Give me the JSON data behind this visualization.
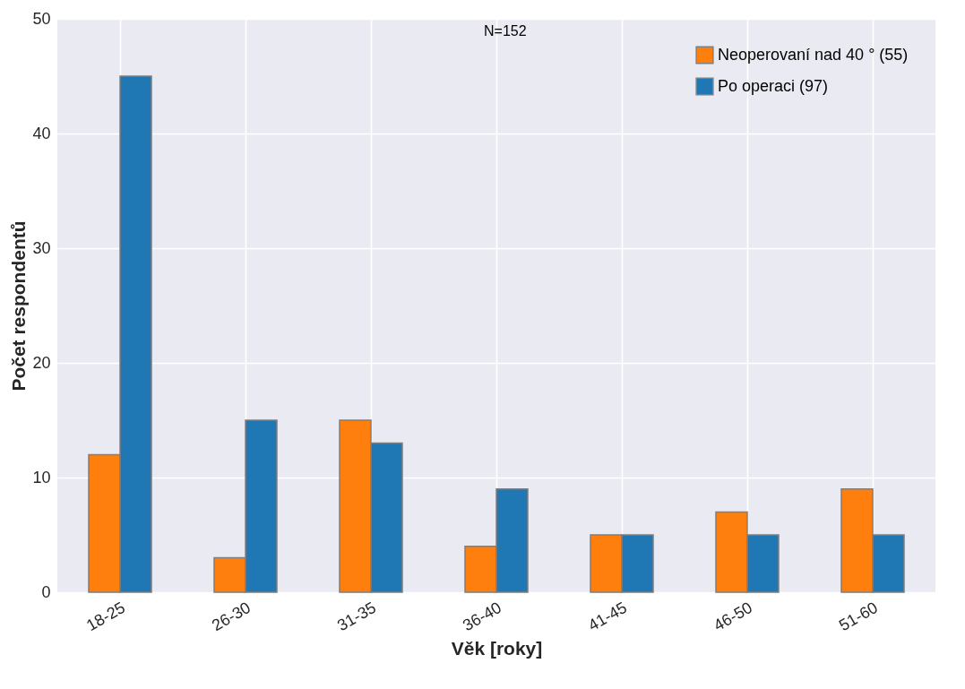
{
  "chart_data": {
    "type": "bar",
    "xlabel": "Věk [roky]",
    "ylabel": "Počet respondentů",
    "categories": [
      "18-25",
      "26-30",
      "31-35",
      "36-40",
      "41-45",
      "46-50",
      "51-60"
    ],
    "series": [
      {
        "name": "Neoperovaní nad 40 ° (55)",
        "color": "#ff7f0e",
        "values": [
          12,
          3,
          15,
          4,
          5,
          7,
          9
        ]
      },
      {
        "name": "Po operaci (97)",
        "color": "#1f77b4",
        "values": [
          45,
          15,
          13,
          9,
          5,
          5,
          5
        ]
      }
    ],
    "ylim": [
      0,
      50
    ],
    "yticks": [
      0,
      10,
      20,
      30,
      40,
      50
    ],
    "grid": true,
    "legend": "top right",
    "annotations": [
      "N=152"
    ]
  }
}
